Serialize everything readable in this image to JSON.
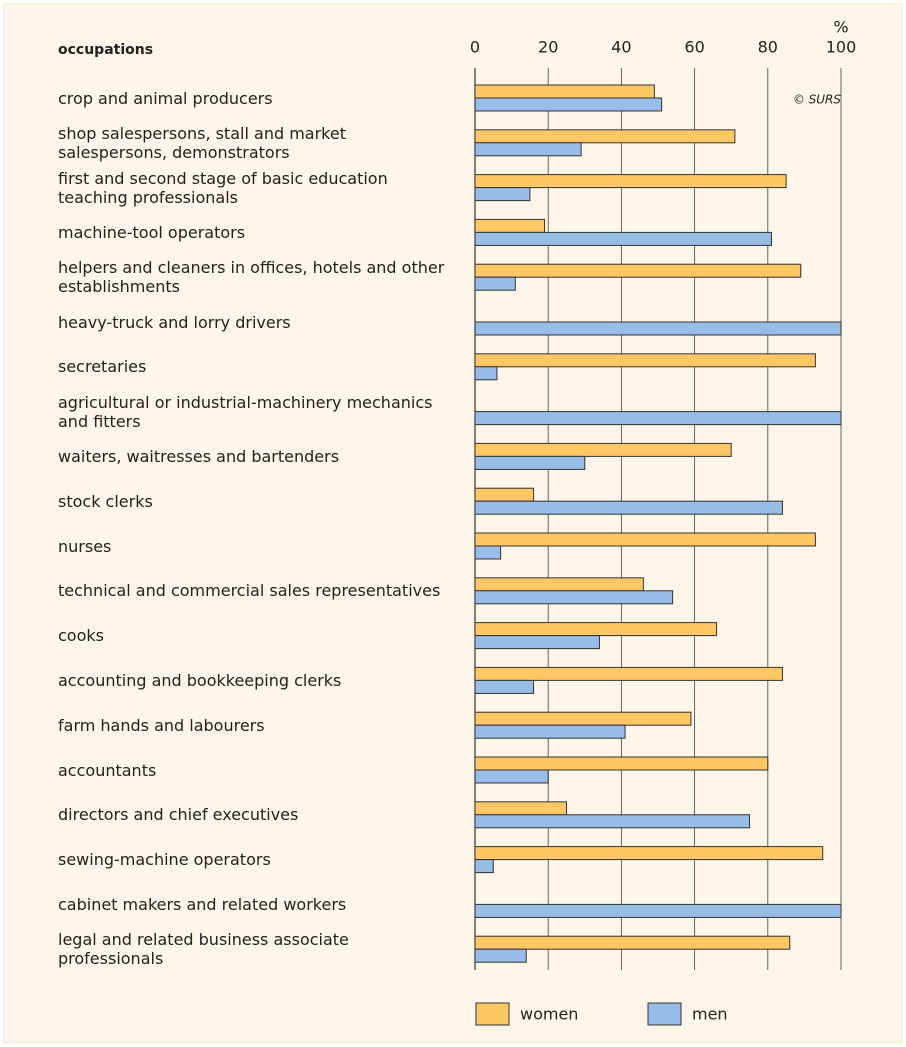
{
  "chart_data": {
    "type": "bar",
    "orientation": "horizontal",
    "y_label": "occupations",
    "x_unit": "%",
    "annotation": "© SURS",
    "categories": [
      "crop and animal producers",
      "shop salespersons, stall and market salespersons, demonstrators",
      "first and second stage of basic education teaching professionals",
      "machine-tool operators",
      "helpers and cleaners in offices, hotels and other establishments",
      "heavy-truck and lorry drivers",
      "secretaries",
      "agricultural or industrial-machinery mechanics and fitters",
      "waiters, waitresses and bartenders",
      "stock clerks",
      "nurses",
      "technical and commercial sales representatives",
      "cooks",
      "accounting and bookkeeping clerks",
      "farm hands and labourers",
      "accountants",
      "directors and chief executives",
      "sewing-machine operators",
      "cabinet makers and related workers",
      "legal and related business associate professionals"
    ],
    "series": [
      {
        "name": "women",
        "color": "#fdc763",
        "values": [
          49,
          71,
          85,
          19,
          89,
          0,
          93,
          0,
          70,
          16,
          93,
          46,
          66,
          84,
          59,
          80,
          25,
          95,
          0,
          86
        ]
      },
      {
        "name": "men",
        "color": "#97bce6",
        "values": [
          51,
          29,
          15,
          81,
          11,
          100,
          6,
          100,
          30,
          84,
          7,
          54,
          34,
          16,
          41,
          20,
          75,
          5,
          100,
          14
        ]
      }
    ],
    "xlim": [
      0,
      100
    ],
    "xticks": [
      0,
      20,
      40,
      60,
      80,
      100
    ],
    "grid": true,
    "legend": "bottom"
  }
}
